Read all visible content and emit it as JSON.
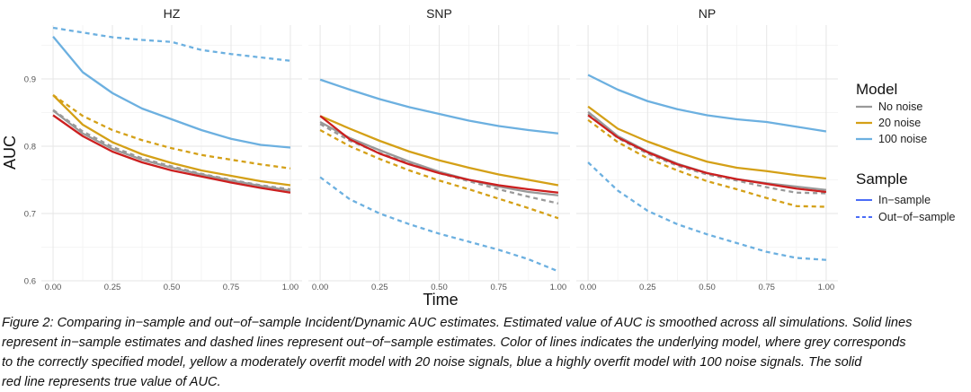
{
  "chart_data": {
    "type": "line",
    "facets": [
      "HZ",
      "SNP",
      "NP"
    ],
    "xlabel": "Time",
    "ylabel": "AUC",
    "xlim": [
      0,
      1
    ],
    "ylim": [
      0.6,
      0.98
    ],
    "x_ticks": [
      0,
      0.25,
      0.5,
      0.75,
      1
    ],
    "x_tick_labels": [
      "0.00",
      "0.25",
      "0.50",
      "0.75",
      "1.00"
    ],
    "y_ticks": [
      0.6,
      0.7,
      0.8,
      0.9
    ],
    "y_tick_labels": [
      "0.6",
      "0.7",
      "0.8",
      "0.9"
    ],
    "grid": true,
    "legend": {
      "position": "right",
      "model_title": "Model",
      "model_items": [
        {
          "label": "No noise",
          "color": "#999999"
        },
        {
          "label": "20 noise",
          "color": "#D4A017"
        },
        {
          "label": "100 noise",
          "color": "#6CB0E0"
        }
      ],
      "sample_title": "Sample",
      "sample_items": [
        {
          "label": "In−sample",
          "dash": "solid",
          "color": "#4A6CF7"
        },
        {
          "label": "Out−of−sample",
          "dash": "dashed",
          "color": "#4A6CF7"
        }
      ]
    },
    "x": [
      0,
      0.125,
      0.25,
      0.375,
      0.5,
      0.625,
      0.75,
      0.875,
      1.0
    ],
    "panels": [
      {
        "name": "HZ",
        "series": [
          {
            "model": "100 noise",
            "sample": "Out-of-sample",
            "color": "#6CB0E0",
            "dashed": true,
            "values": [
              0.976,
              0.969,
              0.962,
              0.958,
              0.955,
              0.943,
              0.937,
              0.932,
              0.927
            ]
          },
          {
            "model": "100 noise",
            "sample": "In-sample",
            "color": "#6CB0E0",
            "dashed": false,
            "values": [
              0.963,
              0.91,
              0.879,
              0.856,
              0.84,
              0.824,
              0.811,
              0.802,
              0.798
            ]
          },
          {
            "model": "20 noise",
            "sample": "Out-of-sample",
            "color": "#D4A017",
            "dashed": true,
            "values": [
              0.876,
              0.845,
              0.824,
              0.809,
              0.797,
              0.787,
              0.78,
              0.773,
              0.767
            ]
          },
          {
            "model": "20 noise",
            "sample": "In-sample",
            "color": "#D4A017",
            "dashed": false,
            "values": [
              0.876,
              0.832,
              0.806,
              0.788,
              0.775,
              0.764,
              0.756,
              0.748,
              0.742
            ]
          },
          {
            "model": "No noise",
            "sample": "Out-of-sample",
            "color": "#999999",
            "dashed": true,
            "values": [
              0.854,
              0.822,
              0.799,
              0.782,
              0.77,
              0.759,
              0.75,
              0.742,
              0.736
            ]
          },
          {
            "model": "No noise",
            "sample": "In-sample",
            "color": "#999999",
            "dashed": false,
            "values": [
              0.853,
              0.819,
              0.796,
              0.78,
              0.768,
              0.758,
              0.749,
              0.741,
              0.734
            ]
          },
          {
            "model": "True AUC",
            "sample": "",
            "color": "#CC1F1F",
            "dashed": false,
            "values": [
              0.846,
              0.815,
              0.792,
              0.776,
              0.764,
              0.755,
              0.746,
              0.738,
              0.731
            ]
          }
        ]
      },
      {
        "name": "SNP",
        "series": [
          {
            "model": "100 noise",
            "sample": "In-sample",
            "color": "#6CB0E0",
            "dashed": false,
            "values": [
              0.899,
              0.884,
              0.87,
              0.858,
              0.848,
              0.838,
              0.83,
              0.824,
              0.819
            ]
          },
          {
            "model": "100 noise",
            "sample": "Out-of-sample",
            "color": "#6CB0E0",
            "dashed": true,
            "values": [
              0.754,
              0.721,
              0.7,
              0.684,
              0.67,
              0.658,
              0.646,
              0.632,
              0.614
            ]
          },
          {
            "model": "20 noise",
            "sample": "In-sample",
            "color": "#D4A017",
            "dashed": false,
            "values": [
              0.845,
              0.826,
              0.808,
              0.792,
              0.779,
              0.768,
              0.758,
              0.75,
              0.742
            ]
          },
          {
            "model": "20 noise",
            "sample": "Out-of-sample",
            "color": "#D4A017",
            "dashed": true,
            "values": [
              0.824,
              0.8,
              0.781,
              0.764,
              0.749,
              0.736,
              0.722,
              0.708,
              0.693
            ]
          },
          {
            "model": "No noise",
            "sample": "In-sample",
            "color": "#999999",
            "dashed": false,
            "values": [
              0.836,
              0.812,
              0.794,
              0.777,
              0.762,
              0.75,
              0.74,
              0.732,
              0.727
            ]
          },
          {
            "model": "No noise",
            "sample": "Out-of-sample",
            "color": "#999999",
            "dashed": true,
            "values": [
              0.833,
              0.808,
              0.79,
              0.774,
              0.76,
              0.748,
              0.736,
              0.725,
              0.715
            ]
          },
          {
            "model": "True AUC",
            "sample": "",
            "color": "#CC1F1F",
            "dashed": false,
            "values": [
              0.845,
              0.81,
              0.789,
              0.773,
              0.76,
              0.75,
              0.742,
              0.736,
              0.731
            ]
          }
        ]
      },
      {
        "name": "NP",
        "series": [
          {
            "model": "100 noise",
            "sample": "In-sample",
            "color": "#6CB0E0",
            "dashed": false,
            "values": [
              0.906,
              0.884,
              0.867,
              0.855,
              0.846,
              0.84,
              0.836,
              0.829,
              0.822
            ]
          },
          {
            "model": "100 noise",
            "sample": "Out-of-sample",
            "color": "#6CB0E0",
            "dashed": true,
            "values": [
              0.776,
              0.734,
              0.704,
              0.684,
              0.669,
              0.656,
              0.643,
              0.634,
              0.631
            ]
          },
          {
            "model": "20 noise",
            "sample": "In-sample",
            "color": "#D4A017",
            "dashed": false,
            "values": [
              0.859,
              0.826,
              0.807,
              0.791,
              0.777,
              0.768,
              0.763,
              0.757,
              0.752
            ]
          },
          {
            "model": "20 noise",
            "sample": "Out-of-sample",
            "color": "#D4A017",
            "dashed": true,
            "values": [
              0.839,
              0.806,
              0.782,
              0.764,
              0.748,
              0.736,
              0.723,
              0.711,
              0.71
            ]
          },
          {
            "model": "No noise",
            "sample": "In-sample",
            "color": "#999999",
            "dashed": false,
            "values": [
              0.851,
              0.815,
              0.792,
              0.774,
              0.76,
              0.751,
              0.745,
              0.74,
              0.735
            ]
          },
          {
            "model": "No noise",
            "sample": "Out-of-sample",
            "color": "#999999",
            "dashed": true,
            "values": [
              0.848,
              0.812,
              0.789,
              0.771,
              0.758,
              0.749,
              0.739,
              0.731,
              0.73
            ]
          },
          {
            "model": "True AUC",
            "sample": "",
            "color": "#CC1F1F",
            "dashed": false,
            "values": [
              0.846,
              0.813,
              0.791,
              0.773,
              0.76,
              0.751,
              0.744,
              0.737,
              0.732
            ]
          }
        ]
      }
    ]
  },
  "caption": [
    "Figure 2: Comparing in−sample and out−of−sample Incident/Dynamic AUC estimates. Estimated value of AUC is smoothed across all simulations. Solid lines",
    "represent in−sample estimates and dashed lines represent out−of−sample estimates. Color of lines indicates the underlying model, where grey corresponds",
    "to the correctly specified model, yellow a moderately overfit model with 20 noise signals, blue a highly overfit model with 100 noise signals. The solid",
    "red line represents true value of AUC."
  ]
}
